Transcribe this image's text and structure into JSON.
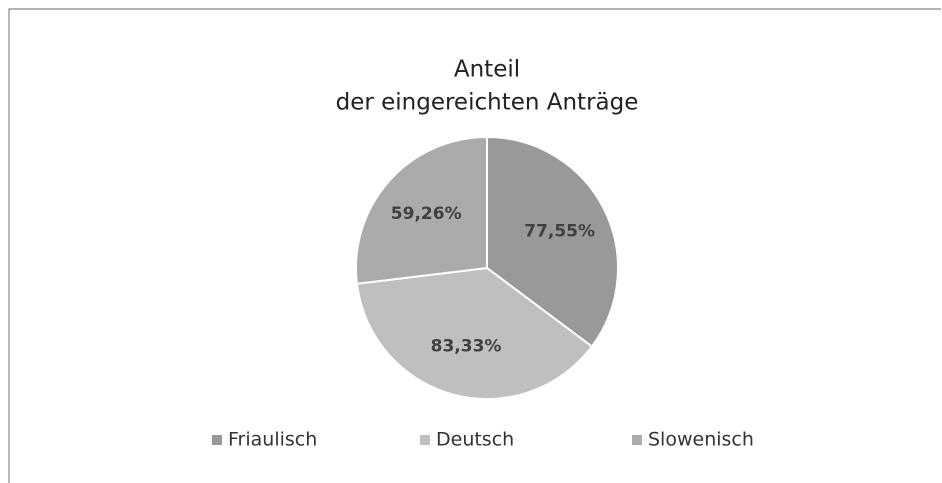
{
  "chart_data": {
    "type": "pie",
    "title": "Anteil",
    "subtitle": "der eingereichten Anträge",
    "categories": [
      "Friaulisch",
      "Deutsch",
      "Slowenisch"
    ],
    "values": [
      77.55,
      83.33,
      59.26
    ],
    "value_labels": [
      "77,55%",
      "83,33%",
      "59,26%"
    ],
    "colors": [
      "#999999",
      "#bfbfbf",
      "#ababab"
    ],
    "legend": "bottom"
  }
}
